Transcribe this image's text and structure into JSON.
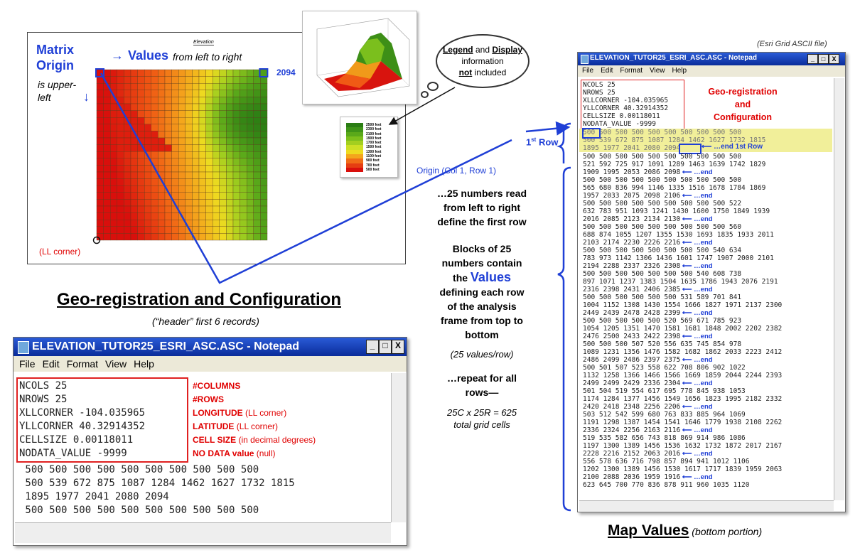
{
  "map": {
    "elevation_label": "Elevation",
    "matrix_origin_title": "Matrix\nOrigin",
    "matrix_origin_note": "is upper-\nleft",
    "values_word": "Values",
    "values_note": "from left to right",
    "value_2094": "2094",
    "ll_corner": "(LL corner)",
    "arrow_right": "→",
    "arrow_down": "↓"
  },
  "legend": {
    "entries": [
      "2500 feet",
      "2300 feet",
      "2100 feet",
      "1900 feet",
      "1700 feet",
      "1500 feet",
      "1300 feet",
      "1100 feet",
      "900 feet",
      "700 feet",
      "500 feet"
    ],
    "colors": [
      "#2b7d14",
      "#3f9418",
      "#5aa91a",
      "#7cbf1c",
      "#a3cf1f",
      "#cde025",
      "#eedb20",
      "#f4a61c",
      "#f06d18",
      "#e53e12",
      "#d90f0c"
    ]
  },
  "cloud": {
    "line1_a": "Legend",
    "line1_b": " and ",
    "line1_c": "Display",
    "line2": "information",
    "line3_a": "not",
    "line3_b": " included"
  },
  "labels": {
    "origin_label": "Origin (Col 1, Row 1)",
    "first_row_1": "1",
    "first_row_sup": "st",
    "first_row_2": " Row",
    "georeg_heading": "Geo-registration and Configuration",
    "header_note": "(“header” first 6 records)",
    "map_values_heading": "Map Values",
    "map_values_note": " (bottom portion)",
    "esri_note": "(Esri Grid  ASCII file)"
  },
  "middle_text": {
    "block1": "…25 numbers read\nfrom left to right\ndefine the first row",
    "block2_a": "Blocks of 25\nnumbers contain\nthe ",
    "block2_values": "Values",
    "block2_b": "\ndefining each row\nof the analysis\nframe from top to\nbottom",
    "block3": "(25 values/row)",
    "block4": "…repeat for all\nrows—",
    "block5": "25C x 25R = 625\ntotal grid cells"
  },
  "notepad_small": {
    "title": "ELEVATION_TUTOR25_ESRI_ASC.ASC - Notepad",
    "menu": [
      "File",
      "Edit",
      "Format",
      "View",
      "Help"
    ],
    "header_lines": [
      "NCOLS 25",
      "NROWS 25",
      "XLLCORNER -104.035965",
      "YLLCORNER 40.32914352",
      "CELLSIZE 0.00118011",
      "NODATA_VALUE -9999"
    ],
    "annotations": [
      {
        "bold": "#COLUMNS",
        "rest": ""
      },
      {
        "bold": "#ROWS",
        "rest": ""
      },
      {
        "bold": "LONGITUDE",
        "rest": " (LL corner)"
      },
      {
        "bold": "LATITUDE",
        "rest": " (LL corner)"
      },
      {
        "bold": "CELL SIZE",
        "rest": " (in decimal degrees)"
      },
      {
        "bold": "NO DATA value",
        "rest": " (null)"
      }
    ],
    "data_lines": [
      " 500 500 500 500 500 500 500 500 500 500",
      " 500 539 672 875 1087 1284 1462 1627 1732 1815",
      " 1895 1977 2041 2080 2094",
      " 500 500 500 500 500 500 500 500 500 500"
    ],
    "btn_min": "_",
    "btn_max": "□",
    "btn_close": "X"
  },
  "notepad_big": {
    "title": "ELEVATION_TUTOR25_ESRI_ASC.ASC - Notepad",
    "menu": [
      "File",
      "Edit",
      "Format",
      "View",
      "Help"
    ],
    "header_lines": [
      "NCOLS 25",
      "NROWS 25",
      "XLLCORNER -104.035965",
      "YLLCORNER 40.32914352",
      "CELLSIZE 0.00118011",
      "NODATA_VALUE -9999"
    ],
    "geo_label": "Geo-registration\nand\nConfiguration",
    "first_block": [
      "500 500 500 500 500 500 500 500 500 500",
      "500 539 672 875 1087 1284 1462 1627 1732 1815",
      "1895 1977 2041 2080 2094"
    ],
    "end_first_row": "…end 1st Row",
    "end_label": "…end",
    "lines": [
      {
        "t": "500 500 500 500 500 500 500 500 500 500",
        "e": false
      },
      {
        "t": "521 592 725 917 1091 1289 1463 1639 1742 1829",
        "e": false
      },
      {
        "t": "1909 1995 2053 2086 2098",
        "e": true
      },
      {
        "t": "500 500 500 500 500 500 500 500 500 500",
        "e": false
      },
      {
        "t": "565 680 836 994 1146 1335 1516 1678 1784 1869",
        "e": false
      },
      {
        "t": "1957 2033 2075 2098 2106",
        "e": true
      },
      {
        "t": "500 500 500 500 500 500 500 500 500 522",
        "e": false
      },
      {
        "t": "632 783 951 1093 1241 1430 1600 1750 1849 1939",
        "e": false
      },
      {
        "t": "2016 2085 2123 2134 2130",
        "e": true
      },
      {
        "t": "500 500 500 500 500 500 500 500 500 560",
        "e": false
      },
      {
        "t": "688 874 1055 1207 1355 1530 1693 1835 1933 2011",
        "e": false
      },
      {
        "t": "2103 2174 2230 2226 2216",
        "e": true
      },
      {
        "t": "500 500 500 500 500 500 500 500 540 634",
        "e": false
      },
      {
        "t": "783 973 1142 1306 1436 1601 1747 1907 2000 2101",
        "e": false
      },
      {
        "t": "2194 2288 2337 2326 2308",
        "e": true
      },
      {
        "t": "500 500 500 500 500 500 500 540 608 738",
        "e": false
      },
      {
        "t": "897 1071 1237 1383 1504 1635 1786 1943 2076 2191",
        "e": false
      },
      {
        "t": "2316 2398 2431 2406 2385",
        "e": true
      },
      {
        "t": "500 500 500 500 500 500 531 589 701 841",
        "e": false
      },
      {
        "t": "1004 1152 1308 1430 1554 1666 1827 1971 2137 2300",
        "e": false
      },
      {
        "t": "2449 2439 2478 2428 2399",
        "e": true
      },
      {
        "t": "500 500 500 500 500 520 569 671 785 923",
        "e": false
      },
      {
        "t": "1054 1205 1351 1470 1581 1681 1848 2002 2202 2382",
        "e": false
      },
      {
        "t": "2476 2500 2433 2422 2398",
        "e": true
      },
      {
        "t": "500 500 500 507 520 556 635 745 854 978",
        "e": false
      },
      {
        "t": "1089 1231 1356 1476 1582 1682 1862 2033 2223 2412",
        "e": false
      },
      {
        "t": "2486 2499 2486 2397 2375",
        "e": true
      },
      {
        "t": "500 501 507 523 558 622 708 806 902 1022",
        "e": false
      },
      {
        "t": "1132 1258 1366 1466 1566 1669 1859 2044 2244 2393",
        "e": false
      },
      {
        "t": "2499 2499 2429 2336 2304",
        "e": true
      },
      {
        "t": "501 504 519 554 617 695 778 845 938 1053",
        "e": false
      },
      {
        "t": "1174 1284 1377 1456 1549 1656 1823 1995 2182 2332",
        "e": false
      },
      {
        "t": "2420 2418 2348 2256 2206",
        "e": true
      },
      {
        "t": "503 512 542 599 680 763 833 885 964 1069",
        "e": false
      },
      {
        "t": "1191 1298 1387 1454 1541 1646 1779 1938 2108 2262",
        "e": false
      },
      {
        "t": "2336 2324 2256 2163 2116",
        "e": true
      },
      {
        "t": "519 535 582 656 743 818 869 914 986 1086",
        "e": false
      },
      {
        "t": "1197 1300 1389 1456 1536 1632 1732 1872 2017 2167",
        "e": false
      },
      {
        "t": "2228 2216 2152 2063 2016",
        "e": true
      },
      {
        "t": "556 578 636 716 798 857 894 941 1012 1106",
        "e": false
      },
      {
        "t": "1202 1300 1389 1456 1530 1617 1717 1839 1959 2063",
        "e": false
      },
      {
        "t": "2100 2088 2036 1959 1916",
        "e": true
      },
      {
        "t": "623 645 700 770 836 878 911 960 1035 1120",
        "e": false
      }
    ],
    "btn_min": "_",
    "btn_max": "□",
    "btn_close": "X"
  }
}
